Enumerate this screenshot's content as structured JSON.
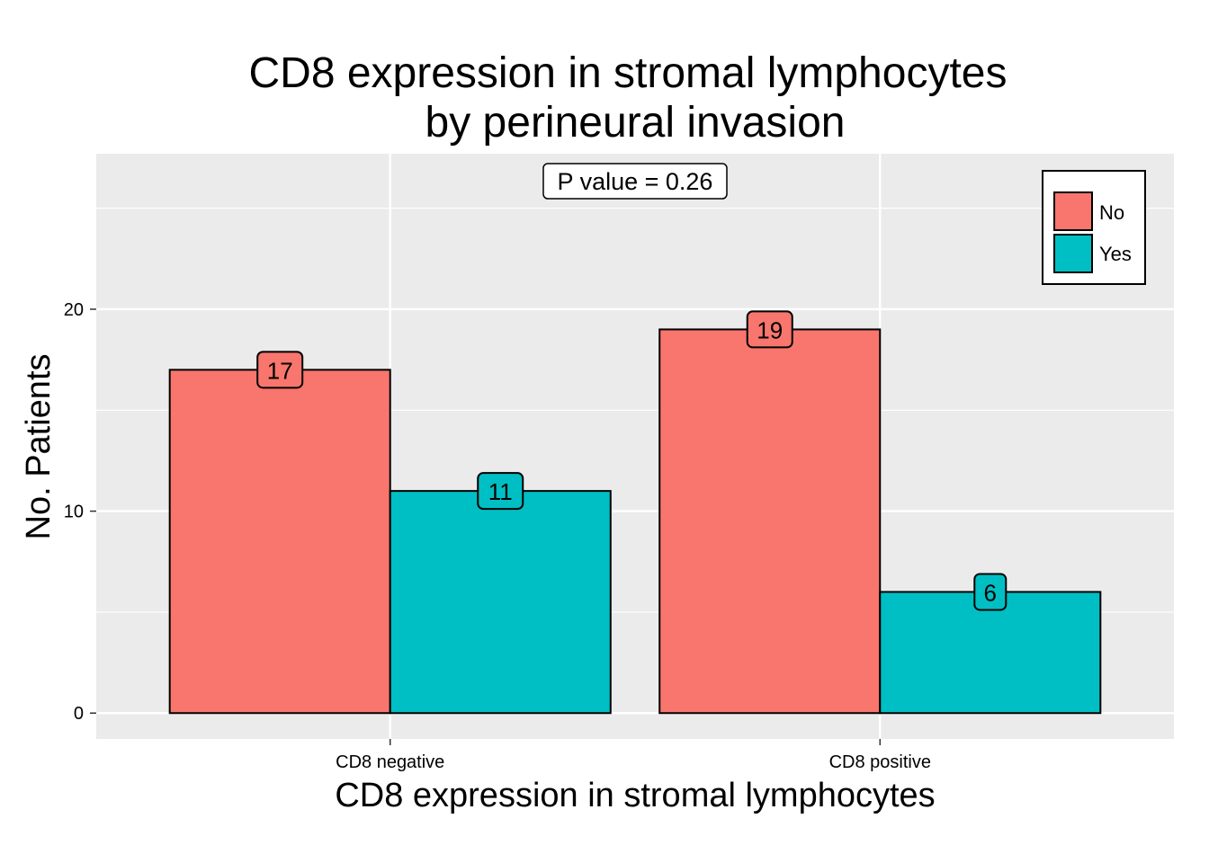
{
  "chart_data": {
    "type": "bar",
    "title_lines": [
      "CD8 expression in stromal lymphocytes",
      "by perineural invasion"
    ],
    "xlabel": "CD8 expression in stromal lymphocytes",
    "ylabel": "No. Patients",
    "categories": [
      "CD8 negative",
      "CD8 positive"
    ],
    "series": [
      {
        "name": "No",
        "values": [
          17,
          19
        ],
        "color": "#F8766D"
      },
      {
        "name": "Yes",
        "values": [
          11,
          6
        ],
        "color": "#00BFC4"
      }
    ],
    "ylim": [
      -1.28,
      27.7
    ],
    "yticks": [
      0,
      10,
      20
    ],
    "grid": true,
    "legend_position": "top-right",
    "annotation": "P value = 0.26"
  }
}
